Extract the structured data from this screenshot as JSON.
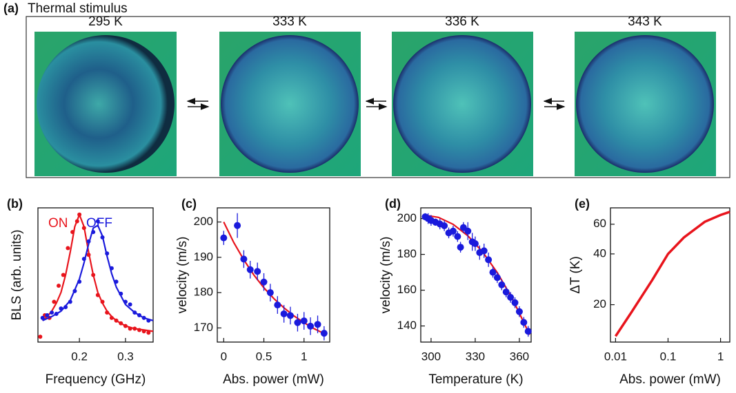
{
  "panel_a": {
    "label": "(a)",
    "title": "Thermal stimulus",
    "images": [
      "295 K",
      "333 K",
      "336 K",
      "343 K"
    ]
  },
  "chart_data": [
    {
      "type": "scatter",
      "panel": "(b)",
      "xlabel": "Frequency (GHz)",
      "ylabel": "BLS (arb. units)",
      "xlim": [
        0.11,
        0.36
      ],
      "xticks": [
        0.2,
        0.3
      ],
      "ylim": [
        0,
        1
      ],
      "annotations": [
        {
          "text": "ON",
          "color": "#e8141c"
        },
        {
          "text": "OFF",
          "color": "#1a1adc"
        }
      ],
      "series": [
        {
          "style": "markers",
          "color": "#e8141c",
          "x": [
            0.115,
            0.125,
            0.135,
            0.145,
            0.155,
            0.165,
            0.175,
            0.185,
            0.195,
            0.2,
            0.21,
            0.22,
            0.23,
            0.24,
            0.25,
            0.26,
            0.27,
            0.28,
            0.29,
            0.3,
            0.31,
            0.32,
            0.33,
            0.34,
            0.35
          ],
          "values": [
            0.04,
            0.2,
            0.18,
            0.3,
            0.42,
            0.5,
            0.7,
            0.82,
            0.9,
            0.95,
            0.85,
            0.65,
            0.5,
            0.35,
            0.3,
            0.22,
            0.18,
            0.16,
            0.14,
            0.12,
            0.1,
            0.1,
            0.09,
            0.08,
            0.07
          ]
        },
        {
          "style": "line",
          "color": "#e8141c",
          "x": [
            0.12,
            0.13,
            0.14,
            0.15,
            0.16,
            0.17,
            0.18,
            0.19,
            0.2,
            0.21,
            0.22,
            0.23,
            0.24,
            0.25,
            0.26,
            0.27,
            0.28,
            0.29,
            0.3,
            0.32,
            0.34,
            0.36
          ],
          "values": [
            0.16,
            0.19,
            0.23,
            0.29,
            0.37,
            0.5,
            0.67,
            0.86,
            0.95,
            0.86,
            0.67,
            0.5,
            0.37,
            0.29,
            0.23,
            0.19,
            0.16,
            0.14,
            0.12,
            0.1,
            0.09,
            0.08
          ]
        },
        {
          "style": "markers",
          "color": "#1a1adc",
          "x": [
            0.12,
            0.13,
            0.14,
            0.15,
            0.16,
            0.17,
            0.18,
            0.19,
            0.2,
            0.21,
            0.22,
            0.23,
            0.24,
            0.25,
            0.26,
            0.27,
            0.28,
            0.29,
            0.3,
            0.31,
            0.32,
            0.33,
            0.34,
            0.35
          ],
          "values": [
            0.18,
            0.2,
            0.22,
            0.21,
            0.25,
            0.26,
            0.3,
            0.38,
            0.45,
            0.62,
            0.75,
            0.82,
            0.9,
            0.78,
            0.66,
            0.55,
            0.45,
            0.36,
            0.3,
            0.28,
            0.22,
            0.2,
            0.18,
            0.16
          ]
        },
        {
          "style": "line",
          "color": "#1a1adc",
          "x": [
            0.12,
            0.14,
            0.16,
            0.18,
            0.2,
            0.21,
            0.22,
            0.23,
            0.24,
            0.25,
            0.26,
            0.27,
            0.28,
            0.3,
            0.32,
            0.34,
            0.36
          ],
          "values": [
            0.16,
            0.19,
            0.23,
            0.31,
            0.47,
            0.59,
            0.73,
            0.85,
            0.87,
            0.79,
            0.64,
            0.51,
            0.41,
            0.28,
            0.22,
            0.18,
            0.16
          ]
        }
      ]
    },
    {
      "type": "scatter",
      "panel": "(c)",
      "xlabel": "Abs. power (mW)",
      "ylabel": "velocity (m/s)",
      "xlim": [
        -0.08,
        1.32
      ],
      "xticks": [
        0,
        0.5,
        1
      ],
      "ylim": [
        166,
        204
      ],
      "yticks": [
        170,
        180,
        190,
        200
      ],
      "series": [
        {
          "style": "line",
          "color": "#e8141c",
          "x": [
            0,
            0.125,
            0.25,
            0.375,
            0.5,
            0.625,
            0.75,
            0.875,
            1,
            1.125,
            1.25
          ],
          "values": [
            200,
            194.2,
            189.3,
            185,
            181.4,
            178.3,
            175.7,
            173.4,
            171.5,
            169.8,
            168.4
          ]
        },
        {
          "style": "markers",
          "color": "#1a1adc",
          "x": [
            0,
            0.17,
            0.25,
            0.33,
            0.42,
            0.5,
            0.58,
            0.67,
            0.75,
            0.83,
            0.92,
            1,
            1.08,
            1.17,
            1.25
          ],
          "values": [
            195.5,
            199,
            189.5,
            186.5,
            186,
            183,
            180,
            176.5,
            174,
            173.5,
            171.5,
            172,
            170.5,
            171,
            168.5
          ],
          "errors": [
            2,
            3.5,
            2.5,
            2.5,
            2.5,
            2.5,
            2.5,
            2.5,
            2.5,
            2.5,
            2.5,
            2.5,
            2.5,
            2.5,
            2
          ]
        }
      ]
    },
    {
      "type": "scatter",
      "panel": "(d)",
      "xlabel": "Temperature (K)",
      "ylabel": "velocity (m/s)",
      "xlim": [
        293,
        368
      ],
      "xticks": [
        300,
        330,
        360
      ],
      "ylim": [
        131,
        206
      ],
      "yticks": [
        140,
        160,
        180,
        200
      ],
      "series": [
        {
          "style": "line",
          "color": "#e8141c",
          "x": [
            295,
            305,
            315,
            325,
            335,
            345,
            355,
            367
          ],
          "values": [
            202,
            200.7,
            196.8,
            190.4,
            181.4,
            169.8,
            155.6,
            135.1
          ]
        },
        {
          "style": "markers",
          "color": "#1a1adc",
          "x": [
            296,
            298,
            300,
            303,
            306,
            309,
            312,
            315,
            318,
            320,
            322,
            325,
            328,
            330,
            333,
            336,
            339,
            342,
            345,
            348,
            351,
            354,
            357,
            360,
            363,
            366
          ],
          "values": [
            201,
            200,
            199,
            198,
            197,
            196,
            192,
            193,
            190,
            184,
            195,
            193,
            187,
            186,
            181,
            182,
            177,
            170,
            167,
            163,
            159,
            156,
            153,
            148,
            142,
            137
          ],
          "errors": [
            2,
            3,
            3,
            2,
            3,
            3,
            3,
            3,
            3,
            3,
            3,
            5,
            5,
            4,
            4,
            4,
            4,
            3,
            3,
            3,
            3,
            3,
            3,
            3,
            3,
            3
          ]
        }
      ]
    },
    {
      "type": "line",
      "panel": "(e)",
      "xlabel": "Abs. power (mW)",
      "ylabel": "ΔT (K)",
      "xscale": "log",
      "yscale": "log",
      "xlim": [
        0.008,
        1.5
      ],
      "xticks": [
        0.01,
        0.1,
        1
      ],
      "ylim": [
        12,
        75
      ],
      "yticks": [
        20,
        40,
        60
      ],
      "series": [
        {
          "style": "line",
          "color": "#e8141c",
          "x": [
            0.01,
            0.02,
            0.05,
            0.1,
            0.2,
            0.5,
            1,
            1.5
          ],
          "values": [
            13,
            18,
            28,
            40,
            50,
            62,
            68,
            71
          ]
        }
      ]
    }
  ]
}
